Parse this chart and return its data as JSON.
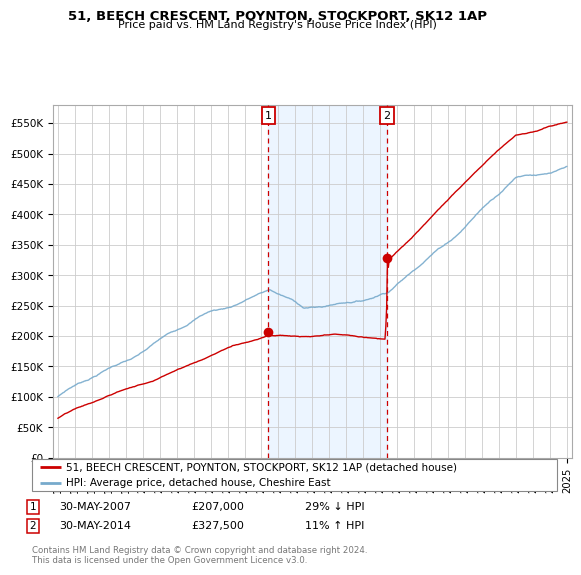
{
  "title": "51, BEECH CRESCENT, POYNTON, STOCKPORT, SK12 1AP",
  "subtitle": "Price paid vs. HM Land Registry's House Price Index (HPI)",
  "ylabel_ticks": [
    "£0",
    "£50K",
    "£100K",
    "£150K",
    "£200K",
    "£250K",
    "£300K",
    "£350K",
    "£400K",
    "£450K",
    "£500K",
    "£550K"
  ],
  "ylim": [
    0,
    580000
  ],
  "yticks": [
    0,
    50000,
    100000,
    150000,
    200000,
    250000,
    300000,
    350000,
    400000,
    450000,
    500000,
    550000
  ],
  "xlim_start": 1994.7,
  "xlim_end": 2025.3,
  "transaction1_x": 2007.41,
  "transaction1_y": 207000,
  "transaction2_x": 2014.41,
  "transaction2_y": 327500,
  "vline1_x": 2007.41,
  "vline2_x": 2014.41,
  "legend_line1": "51, BEECH CRESCENT, POYNTON, STOCKPORT, SK12 1AP (detached house)",
  "legend_line2": "HPI: Average price, detached house, Cheshire East",
  "annotation1_label": "1",
  "annotation1_date": "30-MAY-2007",
  "annotation1_price": "£207,000",
  "annotation1_hpi": "29% ↓ HPI",
  "annotation2_label": "2",
  "annotation2_date": "30-MAY-2014",
  "annotation2_price": "£327,500",
  "annotation2_hpi": "11% ↑ HPI",
  "footer": "Contains HM Land Registry data © Crown copyright and database right 2024.\nThis data is licensed under the Open Government Licence v3.0.",
  "red_color": "#cc0000",
  "blue_color": "#77aacc",
  "bg_shade": "#ddeeff",
  "grid_color": "#cccccc"
}
